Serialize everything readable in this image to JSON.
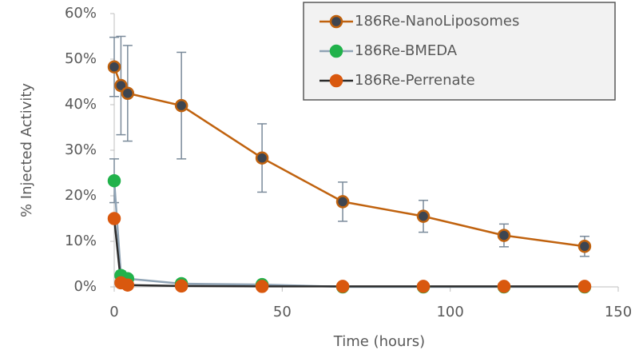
{
  "chart_data": {
    "type": "line",
    "x_label": "Time (hours)",
    "y_label": "% Injected Activity",
    "x": [
      0,
      2,
      4,
      20,
      44,
      68,
      92,
      116,
      140
    ],
    "series": [
      {
        "name": "186Re-NanoLiposomes",
        "color": "#c0620e",
        "marker_color": "#3d4551",
        "marker_edge": "#c0620e",
        "values": [
          48.3,
          44.2,
          42.5,
          39.8,
          28.3,
          18.7,
          15.5,
          11.3,
          8.9
        ],
        "errors": [
          6.5,
          10.8,
          10.5,
          11.7,
          7.5,
          4.3,
          3.5,
          2.5,
          2.2
        ]
      },
      {
        "name": "186Re-BMEDA",
        "color": "#8fa3b5",
        "marker_color": "#21b24b",
        "marker_edge": "#21b24b",
        "values": [
          23.3,
          2.5,
          1.8,
          0.7,
          0.5,
          0,
          0,
          0,
          0
        ],
        "errors": [
          4.8,
          1,
          0.8,
          null,
          null,
          null,
          null,
          null,
          null
        ]
      },
      {
        "name": "186Re-Perrenate",
        "color": "#2b2b2b",
        "marker_color": "#d9580e",
        "marker_edge": "#d9580e",
        "values": [
          15,
          0.9,
          0.4,
          0.2,
          0.1,
          0.1,
          0.1,
          0.1,
          0.1
        ]
      }
    ],
    "error_color": "#7a8a9a",
    "xlim": [
      0,
      150
    ],
    "xticks": [
      0,
      50,
      100,
      150
    ],
    "ylim": [
      0,
      60
    ],
    "yticks": [
      {
        "value": 0,
        "label": "0%"
      },
      {
        "value": 10,
        "label": "10%"
      },
      {
        "value": 20,
        "label": "20%"
      },
      {
        "value": 30,
        "label": "30%"
      },
      {
        "value": 40,
        "label": "40%"
      },
      {
        "value": 50,
        "label": "50%"
      },
      {
        "value": 60,
        "label": "60%"
      }
    ],
    "grid": false,
    "legend": "upper right"
  }
}
